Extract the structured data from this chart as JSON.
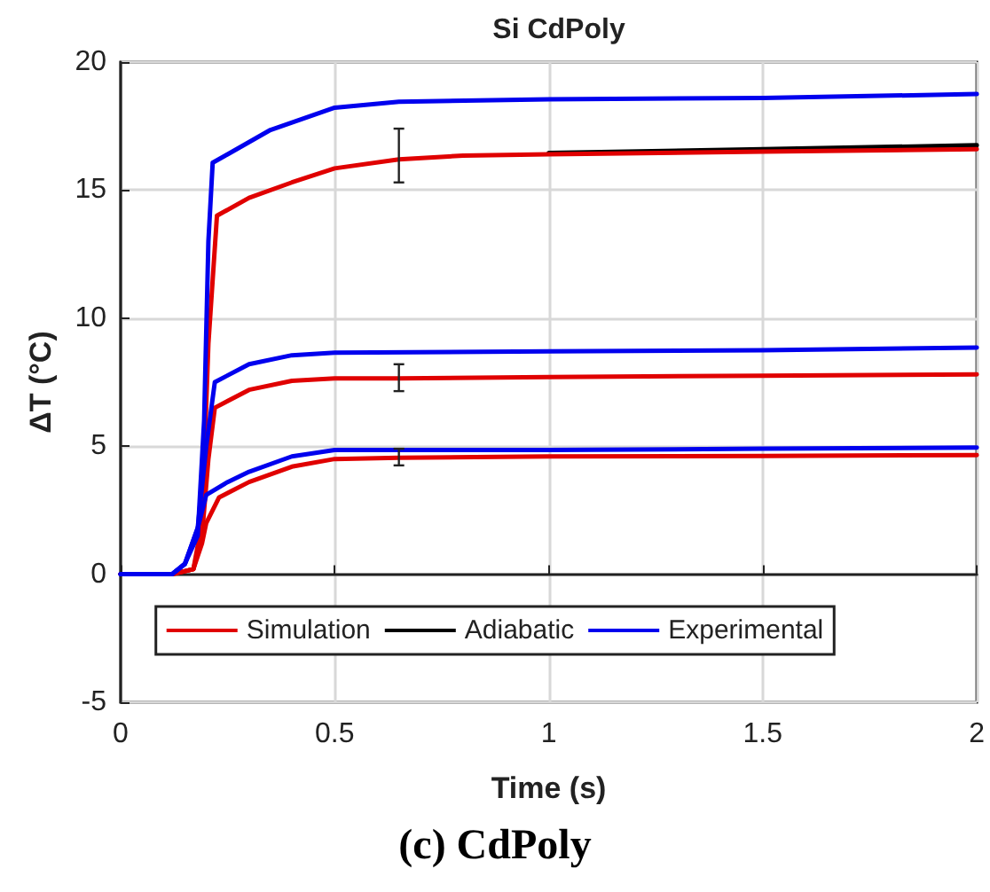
{
  "chart_data": {
    "type": "line",
    "title": "Si CdPoly",
    "xlabel": "Time (s)",
    "ylabel": "ΔT (°C)",
    "annotations": [
      "(c) CdPoly"
    ],
    "xlim": [
      0,
      2
    ],
    "xticks": [
      0,
      0.5,
      1,
      1.5,
      2
    ],
    "ylim": [
      -5,
      20
    ],
    "yticks": [
      -5,
      0,
      5,
      10,
      15,
      20
    ],
    "grid": true,
    "legend": "bottom",
    "marker": "none",
    "line_style": "solid",
    "series": [
      {
        "name": "Adiabatic",
        "color": "#000000",
        "x": [
          1,
          1.5,
          2
        ],
        "values": [
          16.45,
          16.6,
          16.75
        ]
      },
      {
        "name": "Simulation",
        "color": "#e00000",
        "x": [
          0,
          0.12,
          0.17,
          0.19,
          0.205,
          0.225,
          0.3,
          0.4,
          0.5,
          0.65,
          0.8,
          1,
          1.5,
          2
        ],
        "values": [
          0,
          0,
          0.2,
          2,
          9,
          14,
          14.7,
          15.3,
          15.85,
          16.2,
          16.35,
          16.4,
          16.5,
          16.6
        ],
        "errors": [
          null,
          null,
          null,
          null,
          null,
          null,
          null,
          null,
          null,
          [
            15.3,
            17.4
          ],
          null,
          null,
          null,
          null
        ]
      },
      {
        "color": "#e00000",
        "x": [
          0,
          0.12,
          0.17,
          0.19,
          0.205,
          0.22,
          0.3,
          0.4,
          0.5,
          0.65,
          1,
          1.5,
          2
        ],
        "values": [
          0,
          0,
          0.2,
          1.5,
          4.5,
          6.5,
          7.2,
          7.55,
          7.65,
          7.65,
          7.7,
          7.75,
          7.8
        ],
        "errors": [
          null,
          null,
          null,
          null,
          null,
          null,
          null,
          null,
          null,
          [
            7.15,
            8.2
          ],
          null,
          null,
          null
        ]
      },
      {
        "color": "#e00000",
        "x": [
          0,
          0.12,
          0.17,
          0.19,
          0.2,
          0.23,
          0.3,
          0.4,
          0.5,
          0.65,
          1,
          1.5,
          2
        ],
        "values": [
          0,
          0,
          0.2,
          1.2,
          2,
          3,
          3.6,
          4.2,
          4.5,
          4.55,
          4.6,
          4.62,
          4.65
        ],
        "errors": [
          null,
          null,
          null,
          null,
          null,
          null,
          null,
          null,
          null,
          [
            4.25,
            4.9
          ],
          null,
          null,
          null
        ]
      },
      {
        "name": "Experimental",
        "color": "#0000ee",
        "x": [
          0,
          0.12,
          0.15,
          0.18,
          0.195,
          0.205,
          0.215,
          0.25,
          0.35,
          0.5,
          0.65,
          1,
          1.5,
          2
        ],
        "values": [
          0,
          0,
          0.4,
          1.5,
          6,
          13,
          16.07,
          16.4,
          17.35,
          18.22,
          18.45,
          18.55,
          18.6,
          18.75
        ]
      },
      {
        "color": "#0000ee",
        "x": [
          0,
          0.12,
          0.15,
          0.18,
          0.2,
          0.22,
          0.3,
          0.4,
          0.5,
          1,
          1.5,
          2
        ],
        "values": [
          0,
          0,
          0.4,
          1.8,
          5,
          7.5,
          8.2,
          8.55,
          8.65,
          8.7,
          8.75,
          8.85
        ]
      },
      {
        "color": "#0000ee",
        "x": [
          0,
          0.12,
          0.15,
          0.18,
          0.2,
          0.25,
          0.3,
          0.4,
          0.5,
          1,
          1.5,
          2
        ],
        "values": [
          0,
          0,
          0.4,
          1.8,
          3.1,
          3.6,
          4,
          4.6,
          4.85,
          4.85,
          4.9,
          4.95
        ]
      }
    ]
  }
}
